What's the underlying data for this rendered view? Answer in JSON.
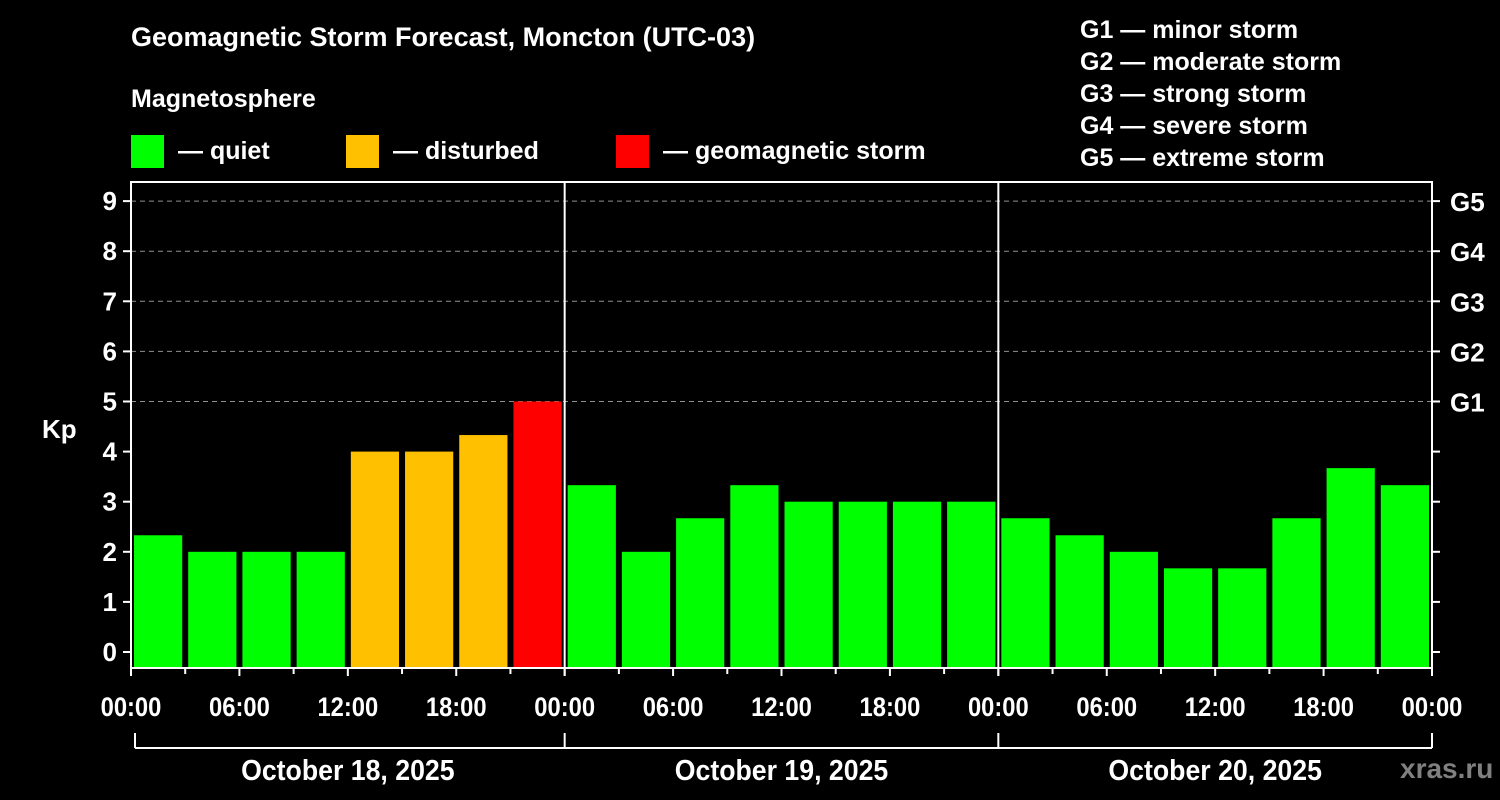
{
  "header": {
    "title": "Geomagnetic Storm Forecast, Moncton (UTC-03)",
    "subtitle": "Magnetosphere"
  },
  "legend": [
    {
      "label": "— quiet",
      "color": "#00ff00"
    },
    {
      "label": "— disturbed",
      "color": "#ffc000"
    },
    {
      "label": "— geomagnetic storm",
      "color": "#ff0000"
    }
  ],
  "g_scale": [
    "G1 — minor storm",
    "G2 — moderate storm",
    "G3 — strong storm",
    "G4 — severe storm",
    "G5 — extreme storm"
  ],
  "watermark": "xras.ru",
  "chart_data": {
    "type": "bar",
    "title": "Geomagnetic Storm Forecast, Moncton (UTC-03)",
    "ylabel": "Kp",
    "xlabel": "",
    "ylim": [
      0,
      9
    ],
    "yticks": [
      0,
      1,
      2,
      3,
      4,
      5,
      6,
      7,
      8,
      9
    ],
    "right_axis_labels": [
      {
        "kp": 5,
        "label": "G1"
      },
      {
        "kp": 6,
        "label": "G2"
      },
      {
        "kp": 7,
        "label": "G3"
      },
      {
        "kp": 8,
        "label": "G4"
      },
      {
        "kp": 9,
        "label": "G5"
      }
    ],
    "grid": "dashed horizontal at Kp 5-9",
    "x_tick_labels": [
      "00:00",
      "06:00",
      "12:00",
      "18:00",
      "00:00",
      "06:00",
      "12:00",
      "18:00",
      "00:00",
      "06:00",
      "12:00",
      "18:00",
      "00:00"
    ],
    "days": [
      "October 18, 2025",
      "October 19, 2025",
      "October 20, 2025"
    ],
    "interval_hours": 3,
    "values": [
      2.33,
      2,
      2,
      2,
      4,
      4,
      4.33,
      5,
      3.33,
      2,
      2.67,
      3.33,
      3,
      3,
      3,
      3,
      2.67,
      2.33,
      2,
      1.67,
      1.67,
      2.67,
      3.67,
      3.33
    ],
    "levels": [
      "quiet",
      "quiet",
      "quiet",
      "quiet",
      "disturbed",
      "disturbed",
      "disturbed",
      "storm",
      "quiet",
      "quiet",
      "quiet",
      "quiet",
      "quiet",
      "quiet",
      "quiet",
      "quiet",
      "quiet",
      "quiet",
      "quiet",
      "quiet",
      "quiet",
      "quiet",
      "quiet",
      "quiet"
    ],
    "colors": {
      "quiet": "#00ff00",
      "disturbed": "#ffc000",
      "storm": "#ff0000"
    }
  }
}
